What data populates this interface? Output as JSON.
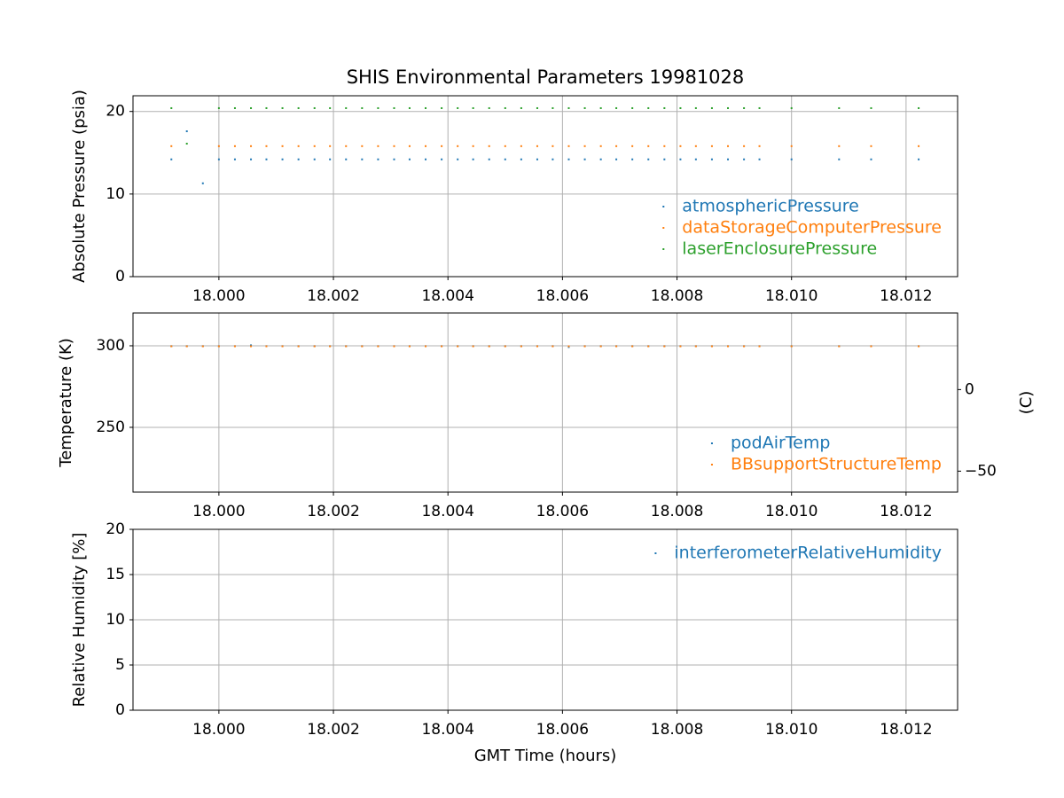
{
  "chart_data": [
    {
      "type": "scatter",
      "title": "SHIS Environmental Parameters 19981028",
      "ylabel": "Absolute Pressure (psia)",
      "x": [
        17.99917,
        17.99944,
        17.99972,
        18.0,
        18.00028,
        18.00056,
        18.00083,
        18.00111,
        18.00139,
        18.00167,
        18.00194,
        18.00222,
        18.0025,
        18.00278,
        18.00306,
        18.00333,
        18.00361,
        18.00389,
        18.00417,
        18.00444,
        18.00472,
        18.005,
        18.00528,
        18.00556,
        18.00583,
        18.00611,
        18.00639,
        18.00667,
        18.00694,
        18.00722,
        18.0075,
        18.00778,
        18.00806,
        18.00833,
        18.00861,
        18.00889,
        18.00917,
        18.00944,
        18.01,
        18.01083,
        18.01139,
        18.01222
      ],
      "series": [
        {
          "name": "atmosphericPressure",
          "color": "#1f77b4",
          "values": [
            14.2,
            17.6,
            11.3,
            14.2,
            14.2,
            14.2,
            14.2,
            14.2,
            14.2,
            14.2,
            14.2,
            14.2,
            14.2,
            14.2,
            14.2,
            14.2,
            14.2,
            14.2,
            14.2,
            14.2,
            14.2,
            14.2,
            14.2,
            14.2,
            14.2,
            14.2,
            14.2,
            14.2,
            14.2,
            14.2,
            14.2,
            14.2,
            14.2,
            14.2,
            14.2,
            14.2,
            14.2,
            14.2,
            14.2,
            14.2,
            14.2,
            14.2
          ]
        },
        {
          "name": "dataStorageComputerPressure",
          "color": "#ff7f0e",
          "values": [
            15.8,
            null,
            null,
            15.8,
            15.8,
            15.8,
            15.8,
            15.8,
            15.8,
            15.8,
            15.8,
            15.8,
            15.8,
            15.8,
            15.8,
            15.8,
            15.8,
            15.8,
            15.8,
            15.8,
            15.8,
            15.8,
            15.8,
            15.8,
            15.8,
            15.8,
            15.8,
            15.8,
            15.8,
            15.8,
            15.8,
            15.8,
            15.8,
            15.8,
            15.8,
            15.8,
            15.8,
            15.8,
            15.8,
            15.8,
            15.8,
            15.8
          ]
        },
        {
          "name": "laserEnclosurePressure",
          "color": "#2ca02c",
          "values": [
            20.4,
            16.1,
            null,
            20.4,
            20.4,
            20.4,
            20.4,
            20.4,
            20.4,
            20.4,
            20.4,
            20.4,
            20.4,
            20.4,
            20.4,
            20.4,
            20.4,
            20.4,
            20.4,
            20.4,
            20.4,
            20.4,
            20.4,
            20.4,
            20.4,
            20.4,
            20.4,
            20.4,
            20.4,
            20.4,
            20.4,
            20.4,
            20.4,
            20.4,
            20.4,
            20.4,
            20.4,
            20.4,
            20.4,
            20.4,
            20.4,
            20.4
          ]
        }
      ],
      "xlim": [
        17.9985,
        18.0129
      ],
      "ylim": [
        0,
        21.9
      ],
      "yticks": [
        0,
        10,
        20
      ],
      "xticks": [
        {
          "value": 18,
          "label": "18.000"
        },
        {
          "value": 18.002,
          "label": "18.002"
        },
        {
          "value": 18.004,
          "label": "18.004"
        },
        {
          "value": 18.006,
          "label": "18.006"
        },
        {
          "value": 18.008,
          "label": "18.008"
        },
        {
          "value": 18.01,
          "label": "18.010"
        },
        {
          "value": 18.012,
          "label": "18.012"
        }
      ],
      "grid": true,
      "legend": "lower right"
    },
    {
      "type": "scatter",
      "ylabel": "Temperature (K)",
      "y2label": "(C)",
      "x": [
        17.99917,
        17.99944,
        17.99972,
        18.0,
        18.00028,
        18.00056,
        18.00083,
        18.00111,
        18.00139,
        18.00167,
        18.00194,
        18.00222,
        18.0025,
        18.00278,
        18.00306,
        18.00333,
        18.00361,
        18.00389,
        18.00417,
        18.00444,
        18.00472,
        18.005,
        18.00528,
        18.00556,
        18.00583,
        18.00611,
        18.00639,
        18.00667,
        18.00694,
        18.00722,
        18.0075,
        18.00778,
        18.00806,
        18.00833,
        18.00861,
        18.00889,
        18.00917,
        18.00944,
        18.01,
        18.01083,
        18.01139,
        18.01222
      ],
      "series": [
        {
          "name": "podAirTemp",
          "color": "#1f77b4",
          "values": [
            299.8,
            299.8,
            299.8,
            299.8,
            299.8,
            300.3,
            299.8,
            299.8,
            299.8,
            299.8,
            299.8,
            299.8,
            299.8,
            299.8,
            299.8,
            299.8,
            299.8,
            299.8,
            299.8,
            299.8,
            299.8,
            299.8,
            299.8,
            299.8,
            299.8,
            299.2,
            299.8,
            299.8,
            299.8,
            299.8,
            299.8,
            299.8,
            299.8,
            299.8,
            299.8,
            299.8,
            299.8,
            299.8,
            299.8,
            299.8,
            299.8,
            299.8
          ]
        },
        {
          "name": "BBsupportStructureTemp",
          "color": "#ff7f0e",
          "values": [
            299.7,
            299.7,
            299.7,
            299.7,
            299.7,
            299.7,
            299.7,
            299.7,
            299.7,
            299.7,
            299.7,
            299.7,
            299.7,
            299.7,
            299.7,
            299.7,
            299.7,
            299.7,
            299.7,
            299.7,
            299.7,
            299.7,
            299.7,
            299.7,
            299.7,
            299.7,
            299.7,
            299.7,
            299.7,
            299.7,
            299.7,
            299.7,
            299.7,
            299.7,
            299.7,
            299.7,
            299.7,
            299.7,
            299.7,
            299.7,
            299.7,
            299.7
          ]
        }
      ],
      "xlim": [
        17.9985,
        18.0129
      ],
      "ylim": [
        210.3,
        320.1
      ],
      "yticks": [
        250,
        300
      ],
      "y2lim": [
        -62.85,
        46.95
      ],
      "y2ticks": [
        {
          "value": -50,
          "label": "−50"
        },
        0
      ],
      "xticks": [
        {
          "value": 18,
          "label": "18.000"
        },
        {
          "value": 18.002,
          "label": "18.002"
        },
        {
          "value": 18.004,
          "label": "18.004"
        },
        {
          "value": 18.006,
          "label": "18.006"
        },
        {
          "value": 18.008,
          "label": "18.008"
        },
        {
          "value": 18.01,
          "label": "18.010"
        },
        {
          "value": 18.012,
          "label": "18.012"
        }
      ],
      "grid": true,
      "legend": "lower right"
    },
    {
      "type": "scatter",
      "ylabel": "Relative Humidity [%]",
      "xlabel": "GMT Time (hours)",
      "x": [
        17.99917,
        17.99944,
        17.99972,
        18.0,
        18.00028,
        18.00056,
        18.00083,
        18.00111,
        18.00139,
        18.00167,
        18.00194,
        18.00222,
        18.0025,
        18.00278,
        18.00306,
        18.00333,
        18.00361,
        18.00389,
        18.00417,
        18.00444,
        18.00472,
        18.005,
        18.00528,
        18.00556,
        18.00583,
        18.00611,
        18.00639,
        18.00667,
        18.00694,
        18.00722,
        18.0075,
        18.00778,
        18.00806,
        18.00833,
        18.00861,
        18.00889,
        18.00917,
        18.00944,
        18.01,
        18.01083,
        18.01139,
        18.01222
      ],
      "series": [
        {
          "name": "interferometerRelativeHumidity",
          "color": "#1f77b4",
          "values": [
            null,
            null,
            null,
            null,
            null,
            null,
            null,
            null,
            null,
            null,
            null,
            null,
            null,
            null,
            null,
            null,
            null,
            null,
            null,
            null,
            null,
            null,
            null,
            null,
            null,
            null,
            null,
            null,
            null,
            null,
            null,
            null,
            null,
            null,
            null,
            null,
            null,
            null,
            null,
            null,
            null,
            null
          ]
        }
      ],
      "xlim": [
        17.9985,
        18.0129
      ],
      "ylim": [
        0,
        20
      ],
      "yticks": [
        0,
        5,
        10,
        15,
        20
      ],
      "xticks": [
        {
          "value": 18,
          "label": "18.000"
        },
        {
          "value": 18.002,
          "label": "18.002"
        },
        {
          "value": 18.004,
          "label": "18.004"
        },
        {
          "value": 18.006,
          "label": "18.006"
        },
        {
          "value": 18.008,
          "label": "18.008"
        },
        {
          "value": 18.01,
          "label": "18.010"
        },
        {
          "value": 18.012,
          "label": "18.012"
        }
      ],
      "grid": true,
      "legend": "upper right"
    }
  ]
}
